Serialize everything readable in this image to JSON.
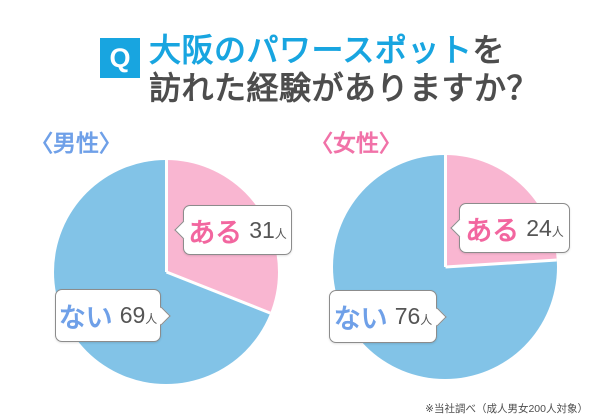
{
  "header": {
    "q_badge": "Q",
    "title_highlight": "大阪のパワースポット",
    "title_suffix": "を",
    "title_line2": "訪れた経験がありますか？"
  },
  "footnote": "※当社調べ（成人男女200人対象）",
  "colors": {
    "accent_blue": "#18A5E0",
    "text_dark": "#4D4D4D",
    "pie_blue": "#82C3E7",
    "pie_pink": "#F9B6D1",
    "label_blue": "#6FA0E8",
    "label_pink": "#F2669F"
  },
  "chart_data": [
    {
      "type": "pie",
      "title": "〈男性〉",
      "labels": [
        "ある",
        "ない"
      ],
      "values": [
        31,
        69
      ],
      "unit": "人",
      "total": 100,
      "slice_colors": [
        "#F9B6D1",
        "#82C3E7"
      ],
      "start_angle_deg": 0,
      "direction": "clockwise",
      "divider_color": "#ffffff"
    },
    {
      "type": "pie",
      "title": "〈女性〉",
      "labels": [
        "ある",
        "ない"
      ],
      "values": [
        24,
        76
      ],
      "unit": "人",
      "total": 100,
      "slice_colors": [
        "#F9B6D1",
        "#82C3E7"
      ],
      "start_angle_deg": 0,
      "direction": "clockwise",
      "divider_color": "#ffffff"
    }
  ]
}
